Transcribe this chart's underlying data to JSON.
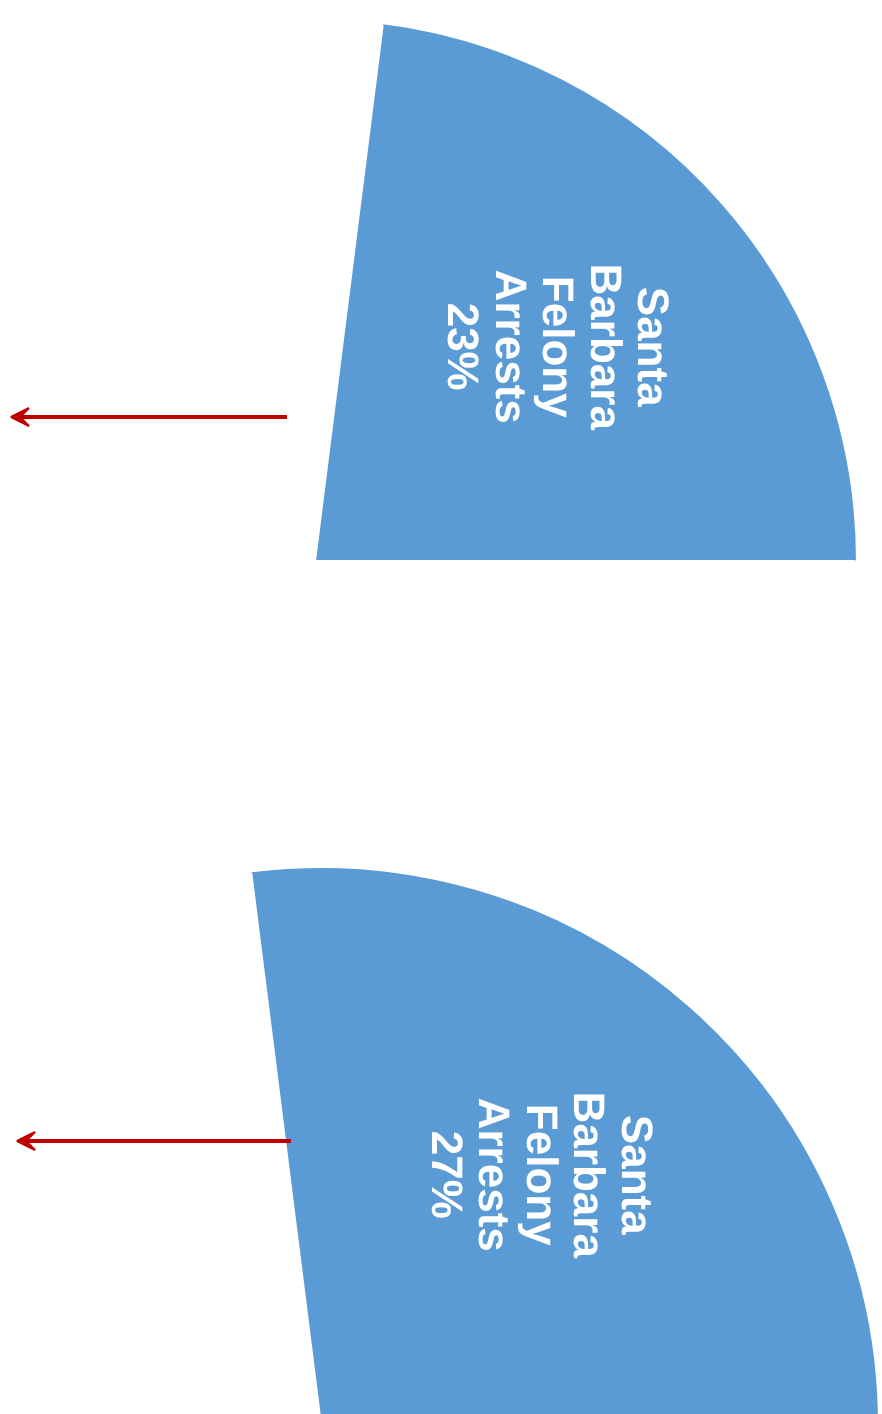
{
  "chart_data": [
    {
      "type": "pie",
      "categories": [
        "Santa Barbara Felony Arrests",
        null
      ],
      "values": [
        23,
        77
      ],
      "value_labels": [
        "23%",
        null
      ],
      "colors": [
        "#5b9bd5",
        "#ffffff"
      ]
    },
    {
      "type": "pie",
      "categories": [
        "Santa Barbara Felony Arrests",
        null
      ],
      "values": [
        27,
        73
      ],
      "value_labels": [
        "27%",
        null
      ],
      "colors": [
        "#5b9bd5",
        "#ffffff"
      ]
    }
  ]
}
